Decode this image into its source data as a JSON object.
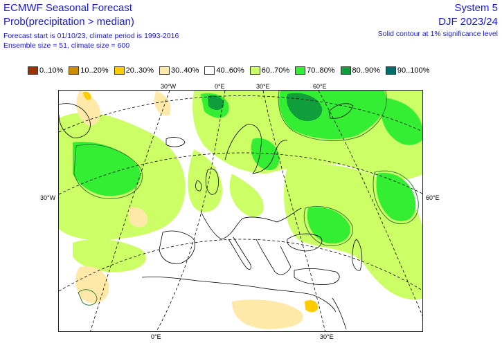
{
  "header": {
    "title_left": "ECMWF Seasonal Forecast",
    "subtitle_left": "Prob(precipitation > median)",
    "info_line1": "Forecast start is 01/10/23, climate period is 1993-2016",
    "info_line2": "Ensemble size = 51, climate size = 600",
    "title_right": "System 5",
    "subtitle_right": "DJF 2023/24",
    "info_right": "Solid contour at 1% significance level"
  },
  "legend": [
    {
      "label": "0..10%",
      "color": "#993300"
    },
    {
      "label": "10..20%",
      "color": "#cc8c00"
    },
    {
      "label": "20..30%",
      "color": "#ffcc00"
    },
    {
      "label": "30..40%",
      "color": "#ffe9a8"
    },
    {
      "label": "40..60%",
      "color": "#ffffff"
    },
    {
      "label": "60..70%",
      "color": "#ccff66"
    },
    {
      "label": "70..80%",
      "color": "#33ee33"
    },
    {
      "label": "80..90%",
      "color": "#109e3c"
    },
    {
      "label": "90..100%",
      "color": "#006d6d"
    }
  ],
  "map": {
    "ticks": {
      "top_30w": "30°W",
      "top_0e": "0°E",
      "top_30e": "30°E",
      "top_60e": "60°E",
      "left_30w": "30°W",
      "right_60e": "60°E",
      "bottom_0e": "0°E",
      "bottom_30e": "30°E"
    },
    "colors": {
      "above_60": "#ccff66",
      "above_70": "#33ee33",
      "above_80": "#109e3c",
      "below_40": "#ffe9a8",
      "below_30": "#ffcc00",
      "contour": "#2e7d32",
      "coast": "#000000",
      "grid": "#000000"
    }
  }
}
